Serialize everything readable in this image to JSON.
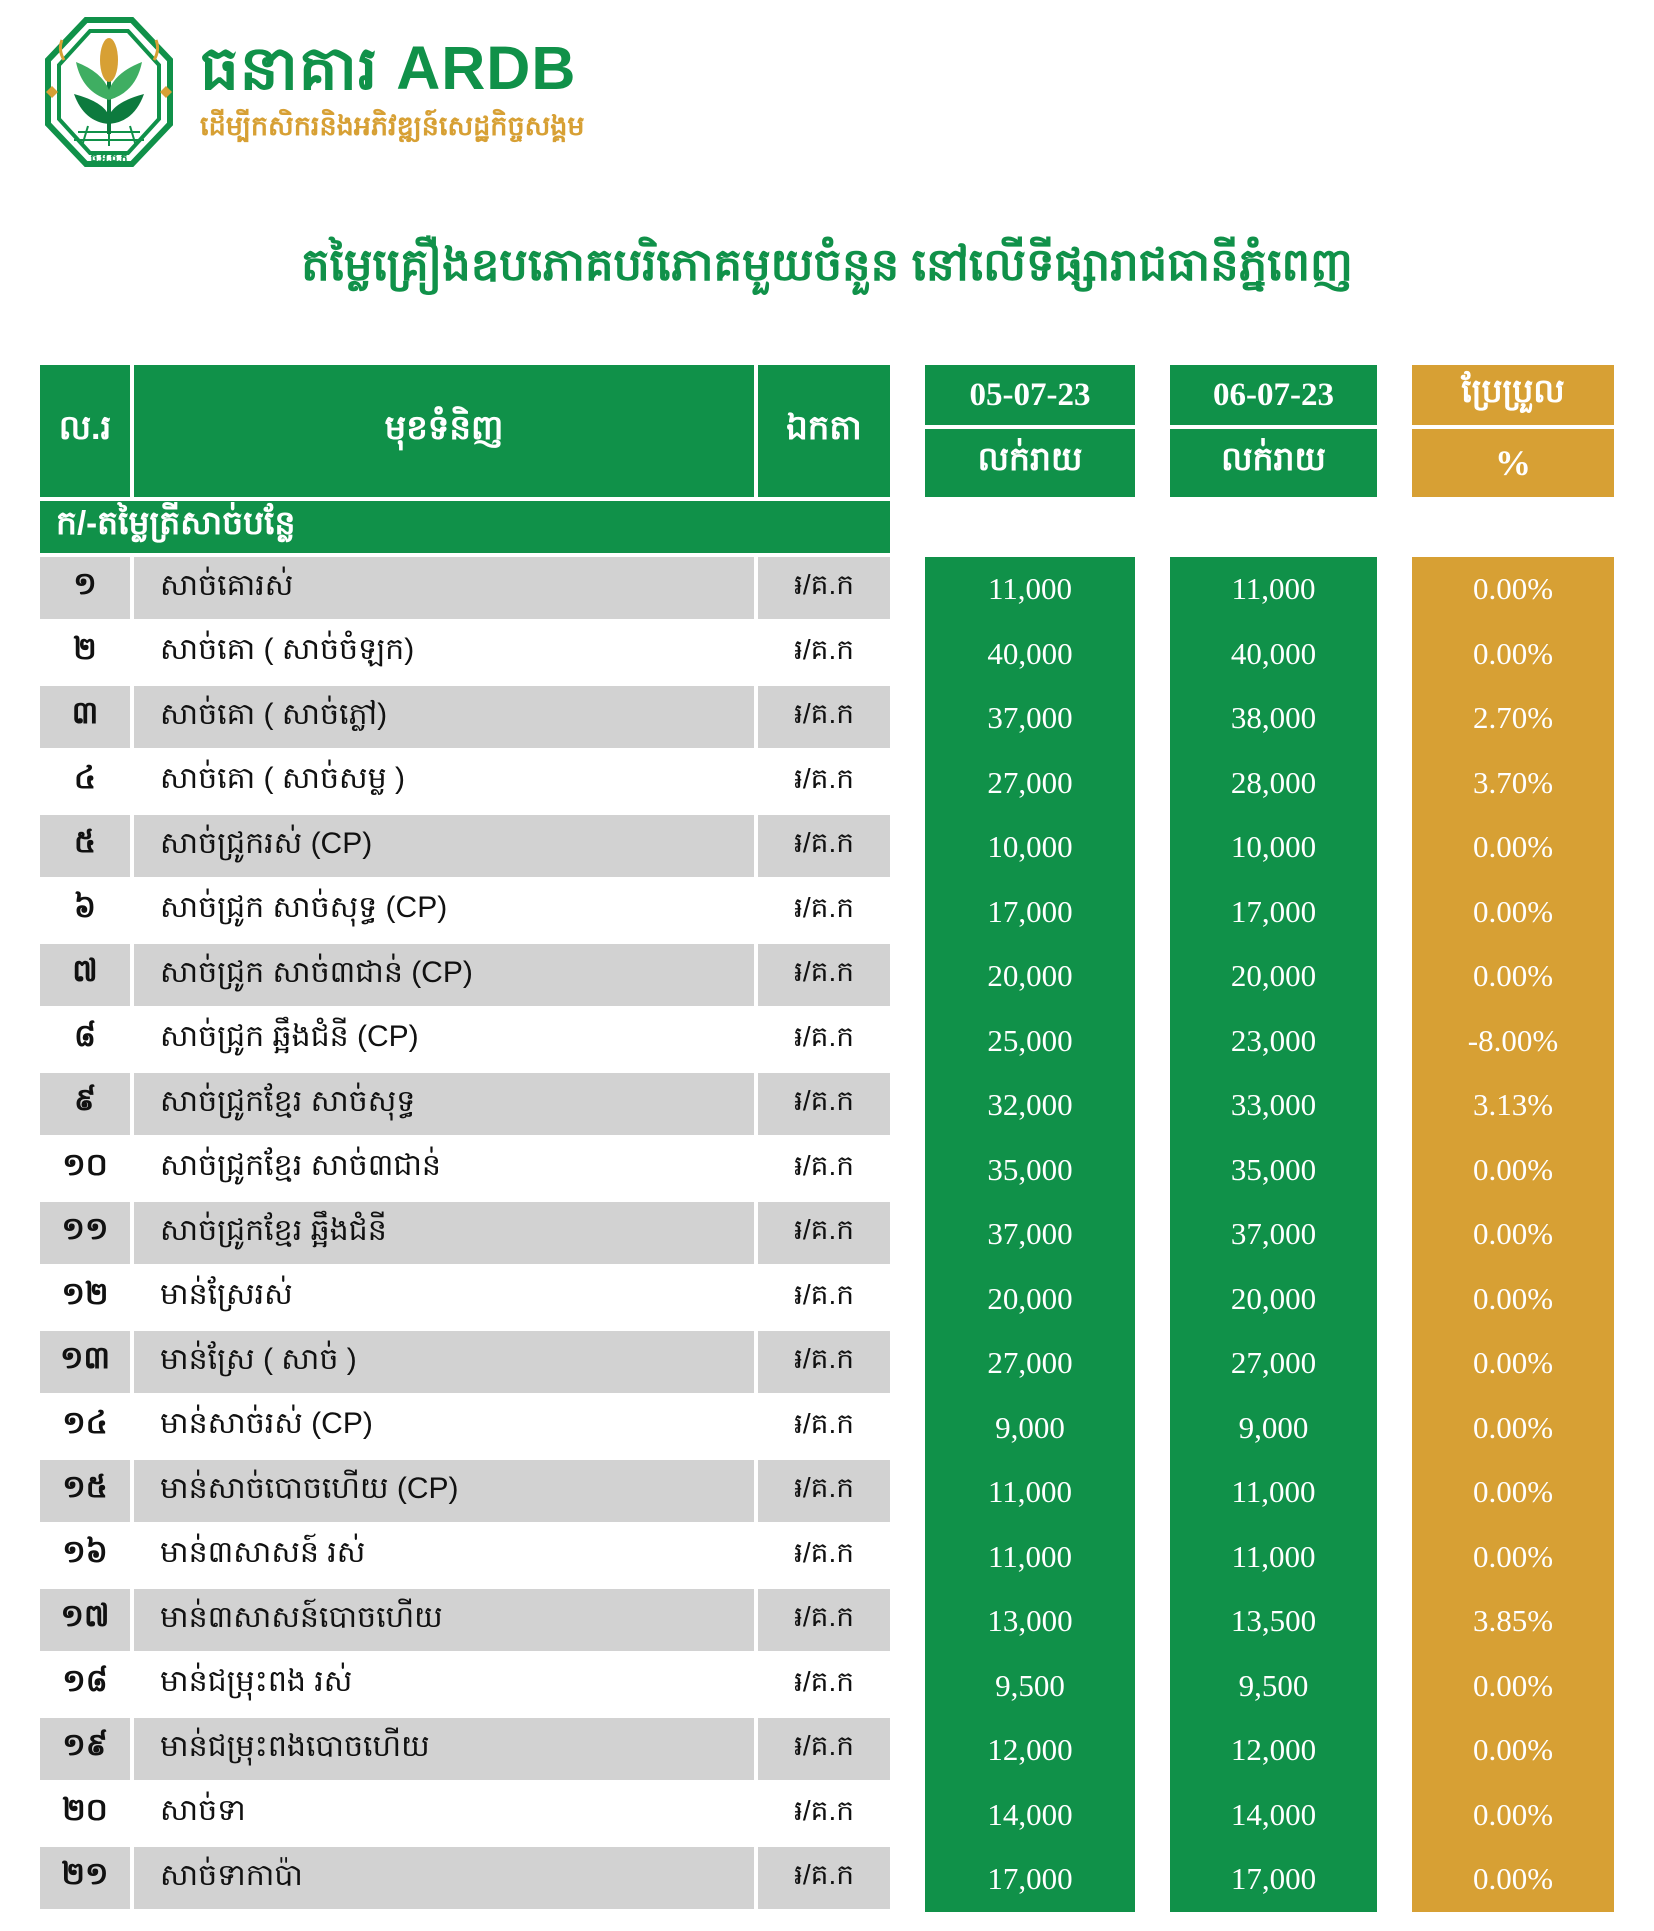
{
  "logo": {
    "bank_name": "ធនាគារ ARDB",
    "tagline": "ដើម្បីកសិករនិងអភិវឌ្ឍន៍សេដ្ឋកិច្ចសង្គម",
    "emblem_caption": "ធ.អ.ជ.ក",
    "emblem_icon": "plant-wheat-octagon-seal"
  },
  "title": "តម្លៃគ្រឿងឧបភោគបរិភោគមួយចំនួន នៅលើទីផ្សារាជធានីភ្នំពេញ",
  "colors": {
    "green": "#109149",
    "gold": "#D7A034",
    "row_gray": "#D2D2D2"
  },
  "table": {
    "col_no": "ល.រ",
    "col_item": "មុខទំនិញ",
    "col_unit": "ឯកតា",
    "date_col1": {
      "date": "05-07-23",
      "label": "លក់រាយ"
    },
    "date_col2": {
      "date": "06-07-23",
      "label": "លក់រាយ"
    },
    "change_col": {
      "label": "ប្រែប្រួល",
      "unit": "%"
    },
    "section": "ក/-តម្លៃត្រីសាច់បន្លែ",
    "rows": [
      {
        "no": "១",
        "item": "សាច់គោរស់",
        "unit": "៛/គ.ក",
        "price1": "11,000",
        "price2": "11,000",
        "change": "0.00%"
      },
      {
        "no": "២",
        "item": "សាច់គោ ( សាច់ចំឡក)",
        "unit": "៛/គ.ក",
        "price1": "40,000",
        "price2": "40,000",
        "change": "0.00%"
      },
      {
        "no": "៣",
        "item": "សាច់គោ ( សាច់ភ្លៅ)",
        "unit": "៛/គ.ក",
        "price1": "37,000",
        "price2": "38,000",
        "change": "2.70%"
      },
      {
        "no": "៤",
        "item": "សាច់គោ ( សាច់សម្ល )",
        "unit": "៛/គ.ក",
        "price1": "27,000",
        "price2": "28,000",
        "change": "3.70%"
      },
      {
        "no": "៥",
        "item": "សាច់ជ្រូករស់ (CP)",
        "unit": "៛/គ.ក",
        "price1": "10,000",
        "price2": "10,000",
        "change": "0.00%"
      },
      {
        "no": "៦",
        "item": "សាច់ជ្រូក សាច់សុទ្ធ (CP)",
        "unit": "៛/គ.ក",
        "price1": "17,000",
        "price2": "17,000",
        "change": "0.00%"
      },
      {
        "no": "៧",
        "item": "សាច់ជ្រូក សាច់៣ជាន់ (CP)",
        "unit": "៛/គ.ក",
        "price1": "20,000",
        "price2": "20,000",
        "change": "0.00%"
      },
      {
        "no": "៨",
        "item": "សាច់ជ្រូក ឆ្អឹងជំនី (CP)",
        "unit": "៛/គ.ក",
        "price1": "25,000",
        "price2": "23,000",
        "change": "-8.00%"
      },
      {
        "no": "៩",
        "item": "សាច់ជ្រូកខ្មែរ សាច់សុទ្ធ",
        "unit": "៛/គ.ក",
        "price1": "32,000",
        "price2": "33,000",
        "change": "3.13%"
      },
      {
        "no": "១០",
        "item": "សាច់ជ្រូកខ្មែរ សាច់៣ជាន់",
        "unit": "៛/គ.ក",
        "price1": "35,000",
        "price2": "35,000",
        "change": "0.00%"
      },
      {
        "no": "១១",
        "item": "សាច់ជ្រូកខ្មែរ ឆ្អឹងជំនី",
        "unit": "៛/គ.ក",
        "price1": "37,000",
        "price2": "37,000",
        "change": "0.00%"
      },
      {
        "no": "១២",
        "item": "មាន់ស្រែរស់",
        "unit": "៛/គ.ក",
        "price1": "20,000",
        "price2": "20,000",
        "change": "0.00%"
      },
      {
        "no": "១៣",
        "item": "មាន់ស្រែ ( សាច់ )",
        "unit": "៛/គ.ក",
        "price1": "27,000",
        "price2": "27,000",
        "change": "0.00%"
      },
      {
        "no": "១៤",
        "item": "មាន់សាច់រស់ (CP)",
        "unit": "៛/គ.ក",
        "price1": "9,000",
        "price2": "9,000",
        "change": "0.00%"
      },
      {
        "no": "១៥",
        "item": "មាន់សាច់បោចហើយ (CP)",
        "unit": "៛/គ.ក",
        "price1": "11,000",
        "price2": "11,000",
        "change": "0.00%"
      },
      {
        "no": "១៦",
        "item": "មាន់៣សាសន៍ រស់",
        "unit": "៛/គ.ក",
        "price1": "11,000",
        "price2": "11,000",
        "change": "0.00%"
      },
      {
        "no": "១៧",
        "item": "មាន់៣សាសន៍បោចហើយ",
        "unit": "៛/គ.ក",
        "price1": "13,000",
        "price2": "13,500",
        "change": "3.85%"
      },
      {
        "no": "១៨",
        "item": "មាន់ជម្រុះពង រស់",
        "unit": "៛/គ.ក",
        "price1": "9,500",
        "price2": "9,500",
        "change": "0.00%"
      },
      {
        "no": "១៩",
        "item": "មាន់ជម្រុះពងបោចហើយ",
        "unit": "៛/គ.ក",
        "price1": "12,000",
        "price2": "12,000",
        "change": "0.00%"
      },
      {
        "no": "២០",
        "item": "សាច់ទា",
        "unit": "៛/គ.ក",
        "price1": "14,000",
        "price2": "14,000",
        "change": "0.00%"
      },
      {
        "no": "២១",
        "item": "សាច់ទាកាប៉ា",
        "unit": "៛/គ.ក",
        "price1": "17,000",
        "price2": "17,000",
        "change": "0.00%"
      }
    ]
  }
}
